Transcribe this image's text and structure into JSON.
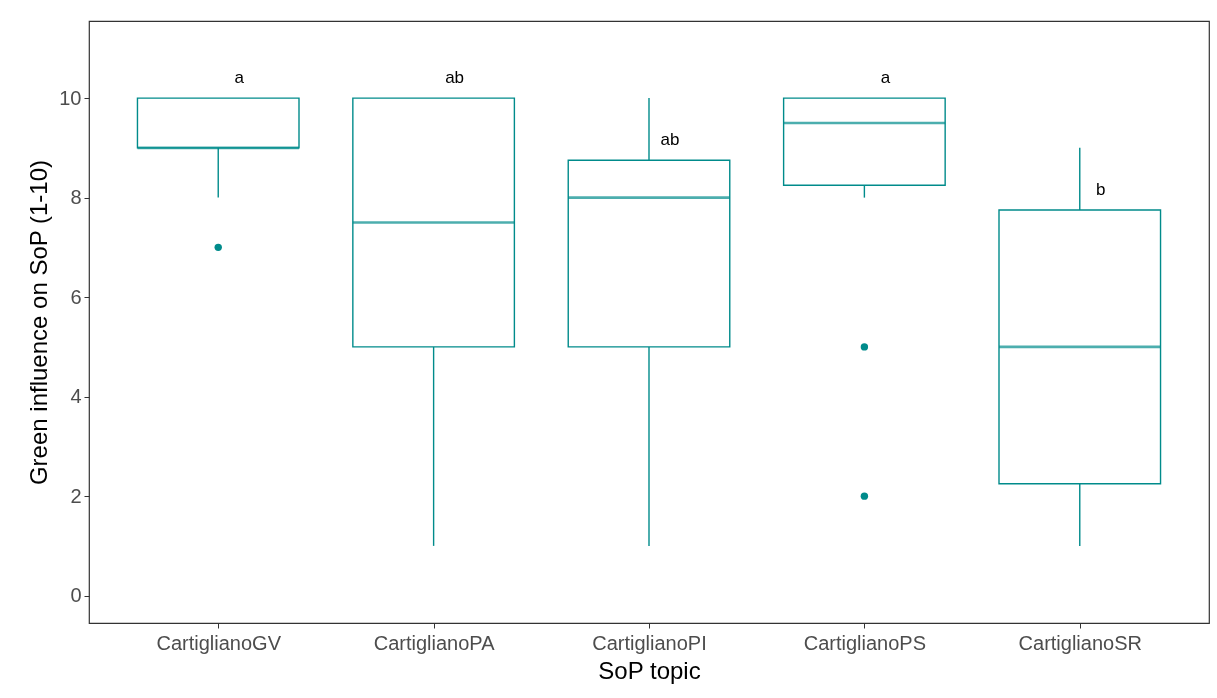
{
  "chart_data": {
    "type": "box",
    "xlabel": "SoP topic",
    "ylabel": "Green influence on SoP (1-10)",
    "categories": [
      "CartiglianoGV",
      "CartiglianoPA",
      "CartiglianoPI",
      "CartiglianoPS",
      "CartiglianoSR"
    ],
    "color": "#008b8b",
    "boxes": [
      {
        "low": 8,
        "q1": 9,
        "median": 9,
        "q3": 10,
        "high": 10,
        "outliers": [
          7
        ]
      },
      {
        "low": 1,
        "q1": 5,
        "median": 7.5,
        "q3": 10,
        "high": 10
      },
      {
        "low": 1,
        "q1": 5,
        "median": 8,
        "q3": 8.75,
        "high": 10
      },
      {
        "low": 8,
        "q1": 8.25,
        "median": 9.5,
        "q3": 10,
        "high": 10,
        "outliers": [
          5,
          2
        ]
      },
      {
        "low": 1,
        "q1": 2.25,
        "median": 5,
        "q3": 7.75,
        "high": 9
      }
    ],
    "ylim": [
      -0.55,
      11.55
    ],
    "yticks": [
      0,
      2,
      4,
      6,
      8,
      10
    ],
    "annotations": [
      "a",
      "ab",
      "ab",
      "a",
      "b"
    ]
  }
}
